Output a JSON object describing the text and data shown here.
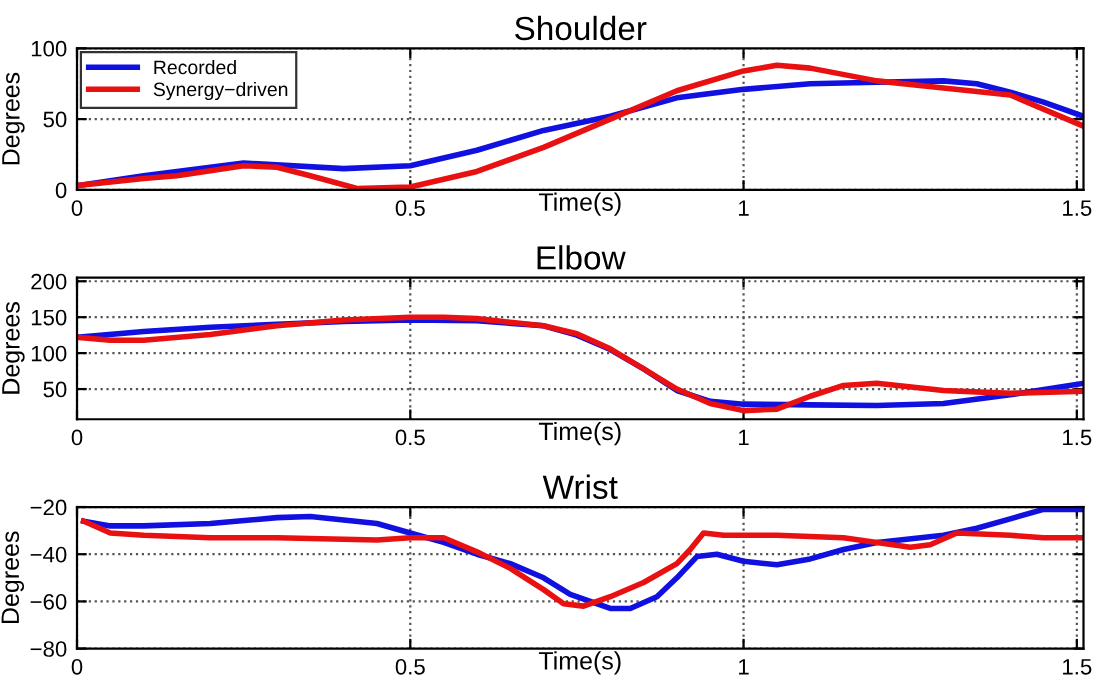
{
  "chart_data": [
    {
      "type": "line",
      "title": "Shoulder",
      "xlabel": "Time(s)",
      "ylabel": "Degrees",
      "xlim": [
        0,
        1.51
      ],
      "xticks": [
        0,
        0.5,
        1,
        1.5
      ],
      "ylim": [
        0,
        100
      ],
      "yticks": [
        0,
        50,
        100
      ],
      "grid": true,
      "legend": "top left",
      "series": [
        {
          "name": "Recorded",
          "color": "#1010e0",
          "x": [
            0,
            0.1,
            0.25,
            0.4,
            0.5,
            0.6,
            0.7,
            0.8,
            0.9,
            1.0,
            1.1,
            1.2,
            1.3,
            1.35,
            1.4,
            1.45,
            1.51
          ],
          "values": [
            3,
            10,
            19,
            15,
            17,
            28,
            42,
            52,
            65,
            71,
            75,
            76,
            77,
            75,
            69,
            62,
            52
          ]
        },
        {
          "name": "Synergy−driven",
          "color": "#e81010",
          "x": [
            0,
            0.1,
            0.15,
            0.25,
            0.3,
            0.35,
            0.42,
            0.5,
            0.6,
            0.7,
            0.8,
            0.9,
            1.0,
            1.05,
            1.1,
            1.2,
            1.3,
            1.4,
            1.51
          ],
          "values": [
            3,
            8,
            10,
            17,
            16,
            10,
            1,
            2,
            13,
            30,
            50,
            70,
            84,
            88,
            86,
            77,
            72,
            67,
            45
          ]
        }
      ]
    },
    {
      "type": "line",
      "title": "Elbow",
      "xlabel": "Time(s)",
      "ylabel": "Degrees",
      "xlim": [
        0,
        1.51
      ],
      "xticks": [
        0,
        0.5,
        1,
        1.5
      ],
      "ylim": [
        8,
        205
      ],
      "yticks": [
        50,
        100,
        150,
        200
      ],
      "grid": true,
      "series": [
        {
          "color": "#1010e0",
          "x": [
            0,
            0.1,
            0.2,
            0.3,
            0.4,
            0.5,
            0.6,
            0.7,
            0.75,
            0.8,
            0.85,
            0.9,
            0.95,
            1.0,
            1.1,
            1.2,
            1.3,
            1.4,
            1.51
          ],
          "values": [
            122,
            130,
            136,
            140,
            144,
            146,
            145,
            138,
            125,
            105,
            78,
            48,
            33,
            29,
            28,
            27,
            30,
            42,
            58
          ]
        },
        {
          "color": "#e81010",
          "x": [
            0,
            0.05,
            0.1,
            0.2,
            0.3,
            0.4,
            0.5,
            0.55,
            0.6,
            0.7,
            0.75,
            0.8,
            0.85,
            0.9,
            0.95,
            1.0,
            1.05,
            1.1,
            1.15,
            1.2,
            1.3,
            1.4,
            1.51
          ],
          "values": [
            122,
            118,
            118,
            126,
            138,
            146,
            150,
            150,
            148,
            138,
            127,
            106,
            78,
            50,
            30,
            20,
            22,
            40,
            55,
            58,
            48,
            44,
            47
          ]
        }
      ]
    },
    {
      "type": "line",
      "title": "Wrist",
      "xlabel": "Time(s)",
      "ylabel": "Degrees",
      "xlim": [
        0,
        1.51
      ],
      "xticks": [
        0,
        0.5,
        1,
        1.5
      ],
      "ylim": [
        -80,
        -20
      ],
      "yticks": [
        {
          "value": -80,
          "label": "−80"
        },
        {
          "value": -60,
          "label": "−60"
        },
        {
          "value": -40,
          "label": "−40"
        },
        {
          "value": -20,
          "label": "−20"
        }
      ],
      "grid": true,
      "series": [
        {
          "color": "#1010e0",
          "x": [
            0.01,
            0.05,
            0.1,
            0.2,
            0.3,
            0.35,
            0.45,
            0.5,
            0.55,
            0.6,
            0.65,
            0.7,
            0.74,
            0.77,
            0.8,
            0.83,
            0.87,
            0.9,
            0.93,
            0.96,
            1.0,
            1.05,
            1.1,
            1.15,
            1.2,
            1.3,
            1.35,
            1.4,
            1.45,
            1.51
          ],
          "values": [
            -26,
            -28,
            -28,
            -27,
            -24.5,
            -24,
            -27,
            -31,
            -35,
            -40,
            -44,
            -50,
            -57,
            -60,
            -63,
            -63,
            -58,
            -50,
            -41,
            -40,
            -43,
            -44.5,
            -42,
            -38,
            -35,
            -32,
            -29,
            -25,
            -21,
            -21
          ]
        },
        {
          "color": "#e81010",
          "x": [
            0.01,
            0.05,
            0.1,
            0.2,
            0.3,
            0.45,
            0.5,
            0.55,
            0.6,
            0.65,
            0.7,
            0.73,
            0.76,
            0.8,
            0.85,
            0.9,
            0.92,
            0.94,
            0.97,
            1.05,
            1.15,
            1.2,
            1.25,
            1.28,
            1.32,
            1.4,
            1.45,
            1.51
          ],
          "values": [
            -26,
            -31,
            -32,
            -33,
            -33,
            -34,
            -33,
            -33,
            -39,
            -46,
            -55,
            -61,
            -62,
            -58,
            -52,
            -44,
            -38,
            -31,
            -32,
            -32,
            -33,
            -35,
            -37,
            -36,
            -31,
            -32,
            -33,
            -33
          ]
        }
      ]
    }
  ]
}
